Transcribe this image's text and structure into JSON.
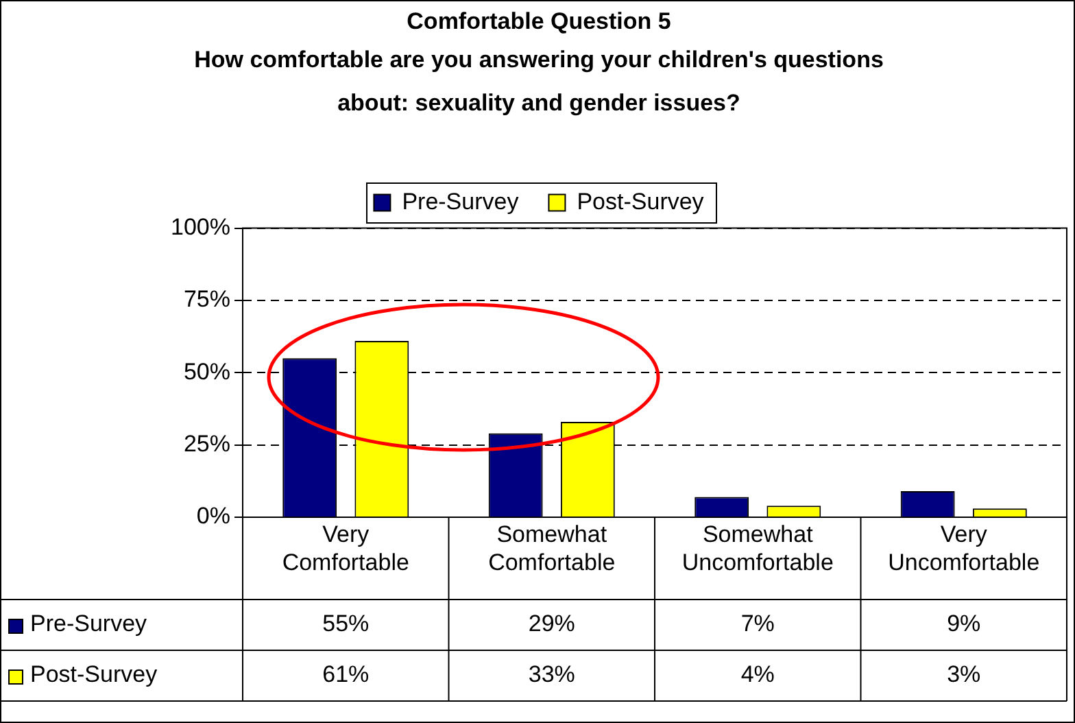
{
  "chart_data": {
    "type": "bar",
    "title": "Comfortable Question 5",
    "subtitle": "How comfortable are you answering your children's questions about: sexuality and gender issues?",
    "categories": [
      "Very Comfortable",
      "Somewhat Comfortable",
      "Somewhat Uncomfortable",
      "Very Uncomfortable"
    ],
    "series": [
      {
        "name": "Pre-Survey",
        "color": "#000080",
        "values": [
          55,
          29,
          7,
          9
        ],
        "value_labels": [
          "55%",
          "29%",
          "7%",
          "9%"
        ]
      },
      {
        "name": "Post-Survey",
        "color": "#ffff00",
        "values": [
          61,
          33,
          4,
          3
        ],
        "value_labels": [
          "61%",
          "33%",
          "4%",
          "3%"
        ]
      }
    ],
    "ylim": [
      0,
      100
    ],
    "yticks": [
      {
        "value": 0,
        "label": "0%"
      },
      {
        "value": 25,
        "label": "25%"
      },
      {
        "value": 50,
        "label": "50%"
      },
      {
        "value": 75,
        "label": "75%"
      },
      {
        "value": 100,
        "label": "100%"
      }
    ],
    "grid": "y",
    "legend": "top"
  }
}
